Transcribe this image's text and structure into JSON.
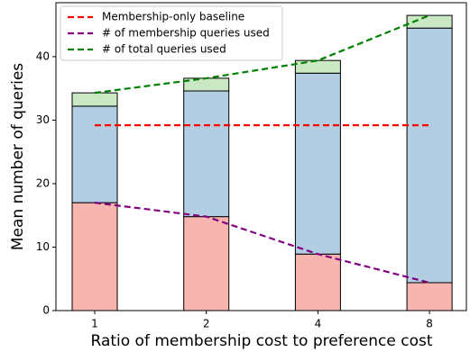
{
  "chart_data": {
    "type": "bar",
    "x_label": "Ratio of membership cost to preference cost",
    "y_label": "Mean number of queries",
    "categories": [
      "1",
      "2",
      "4",
      "8"
    ],
    "series": [
      {
        "color": "#f8b4ae",
        "values": [
          17,
          14.8,
          8.9,
          4.4
        ]
      },
      {
        "color": "#b3cde3",
        "values": [
          15.2,
          19.8,
          28.5,
          40.1
        ]
      },
      {
        "color": "#cbe8c4",
        "values": [
          2.1,
          2.0,
          2.0,
          2.0
        ]
      }
    ],
    "lines": [
      {
        "name": "Membership-only baseline",
        "color": "#ff0000",
        "values": [
          29.2,
          29.2,
          29.2,
          29.2
        ]
      },
      {
        "name": "# of membership queries used",
        "color": "#800080",
        "values": [
          17,
          14.8,
          8.9,
          4.4
        ]
      },
      {
        "name": "# of total queries used",
        "color": "#008000",
        "values": [
          34.3,
          36.6,
          39.4,
          46.5
        ]
      }
    ],
    "ylim": [
      0,
      48.5
    ],
    "yticks": [
      0,
      10,
      20,
      30,
      40
    ],
    "legend": "upper left"
  }
}
